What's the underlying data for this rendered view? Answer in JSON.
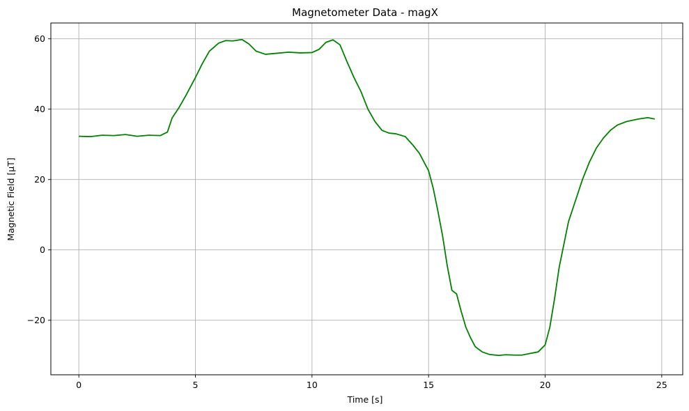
{
  "chart_data": {
    "type": "line",
    "title": "Magnetometer Data - magX",
    "xlabel": "Time [s]",
    "ylabel": "Magnetic Field [µT]",
    "xlim": [
      -1.2,
      25.9
    ],
    "ylim": [
      -35.5,
      64.5
    ],
    "xticks": [
      0,
      5,
      10,
      15,
      20,
      25
    ],
    "yticks": [
      -20,
      0,
      20,
      40,
      60
    ],
    "xtick_labels": [
      "0",
      "5",
      "10",
      "15",
      "20",
      "25"
    ],
    "ytick_labels": [
      "−20",
      "0",
      "20",
      "40",
      "60"
    ],
    "grid": true,
    "series": [
      {
        "color": "#008000",
        "x": [
          0,
          0.5,
          1,
          1.5,
          2,
          2.5,
          3,
          3.5,
          3.8,
          4,
          4.3,
          4.6,
          5,
          5.3,
          5.6,
          6,
          6.3,
          6.6,
          7,
          7.3,
          7.6,
          8,
          8.5,
          9,
          9.5,
          10,
          10.3,
          10.6,
          10.9,
          11.2,
          11.5,
          11.8,
          12.1,
          12.4,
          12.7,
          13,
          13.3,
          13.6,
          14,
          14.3,
          14.6,
          14.8,
          15,
          15.2,
          15.4,
          15.6,
          15.8,
          16,
          16.2,
          16.4,
          16.6,
          16.8,
          17,
          17.3,
          17.6,
          18,
          18.3,
          18.7,
          19,
          19.3,
          19.7,
          20,
          20.2,
          20.4,
          20.6,
          20.8,
          21,
          21.3,
          21.6,
          21.9,
          22.2,
          22.5,
          22.8,
          23.1,
          23.5,
          24,
          24.4,
          24.7
        ],
        "y": [
          32.3,
          32.2,
          32.6,
          32.5,
          32.8,
          32.3,
          32.6,
          32.5,
          33.5,
          37.5,
          40.5,
          44,
          49,
          53,
          56.5,
          58.8,
          59.5,
          59.4,
          59.8,
          58.5,
          56.5,
          55.6,
          55.9,
          56.2,
          56,
          56.1,
          57,
          59,
          59.7,
          58.3,
          53.5,
          49,
          45,
          40,
          36.5,
          34,
          33.2,
          33,
          32.2,
          30,
          27.5,
          25,
          22.5,
          17.5,
          11,
          4,
          -4.5,
          -11.5,
          -12.5,
          -17.5,
          -22,
          -25,
          -27.5,
          -29,
          -29.7,
          -30,
          -29.8,
          -29.9,
          -29.9,
          -29.5,
          -29,
          -27,
          -22,
          -14,
          -5,
          1.5,
          8,
          14,
          20,
          25,
          29,
          31.8,
          34,
          35.5,
          36.5,
          37.2,
          37.6,
          37.2
        ]
      }
    ]
  }
}
